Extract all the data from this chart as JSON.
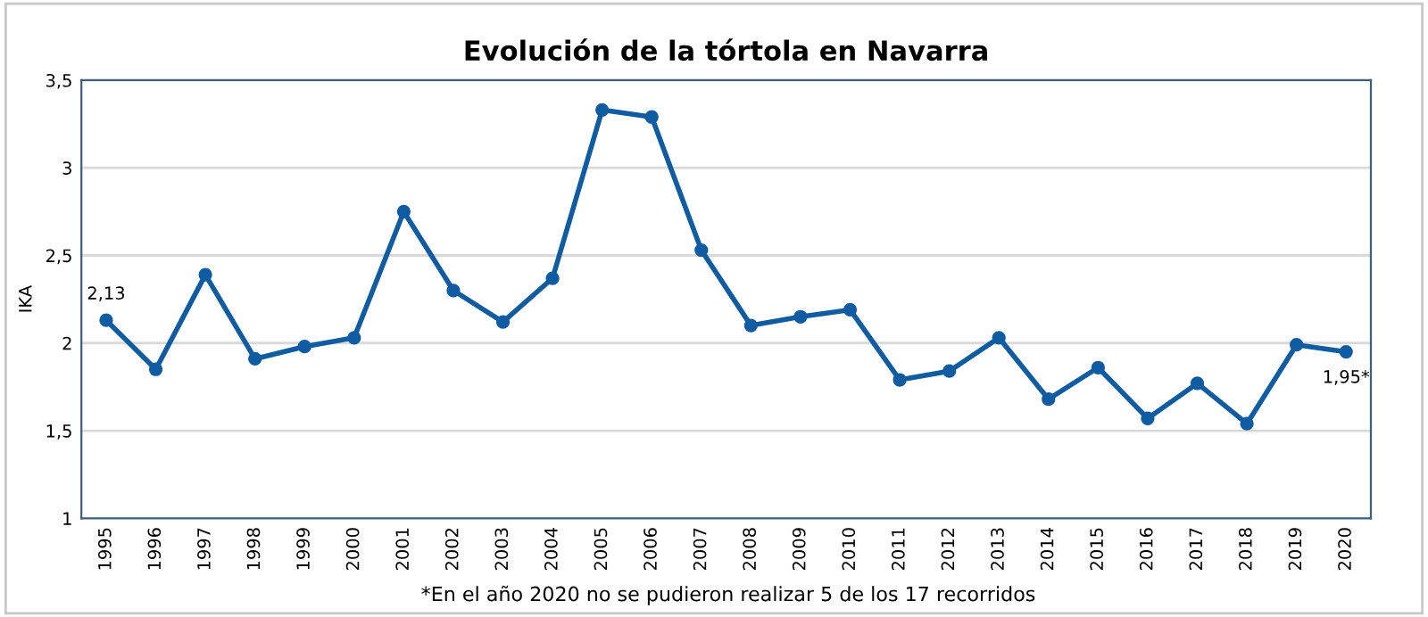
{
  "chart_data": {
    "type": "line",
    "title": "Evolución de la tórtola en Navarra",
    "ylabel": "IKA",
    "categories": [
      "1995",
      "1996",
      "1997",
      "1998",
      "1999",
      "2000",
      "2001",
      "2002",
      "2003",
      "2004",
      "2005",
      "2006",
      "2007",
      "2008",
      "2009",
      "2010",
      "2011",
      "2012",
      "2013",
      "2014",
      "2015",
      "2016",
      "2017",
      "2018",
      "2019",
      "2020"
    ],
    "series": [
      {
        "color": "#0f5ca3",
        "values": [
          2.13,
          1.85,
          2.39,
          1.91,
          1.98,
          2.03,
          2.75,
          2.3,
          2.12,
          2.37,
          3.33,
          3.29,
          2.53,
          2.1,
          2.15,
          2.19,
          1.79,
          1.84,
          2.03,
          1.68,
          1.86,
          1.57,
          1.77,
          1.54,
          1.99,
          1.95
        ],
        "value_labels": [
          "2,13",
          null,
          null,
          null,
          null,
          null,
          null,
          null,
          null,
          null,
          null,
          null,
          null,
          null,
          null,
          null,
          null,
          null,
          null,
          null,
          null,
          null,
          null,
          null,
          null,
          "1,95*"
        ]
      }
    ],
    "ylim": [
      1,
      3.5
    ],
    "yticks": [
      {
        "value": 1,
        "label": "1"
      },
      {
        "value": 1.5,
        "label": "1,5"
      },
      {
        "value": 2,
        "label": "2"
      },
      {
        "value": 2.5,
        "label": "2,5"
      },
      {
        "value": 3,
        "label": "3"
      },
      {
        "value": 3.5,
        "label": "3,5"
      }
    ],
    "grid": "y",
    "marker": "circle",
    "line_style": "solid",
    "legend": false,
    "annotations": [
      "*En el año 2020 no se pudieron realizar 5 de los 17 recorridos"
    ]
  }
}
